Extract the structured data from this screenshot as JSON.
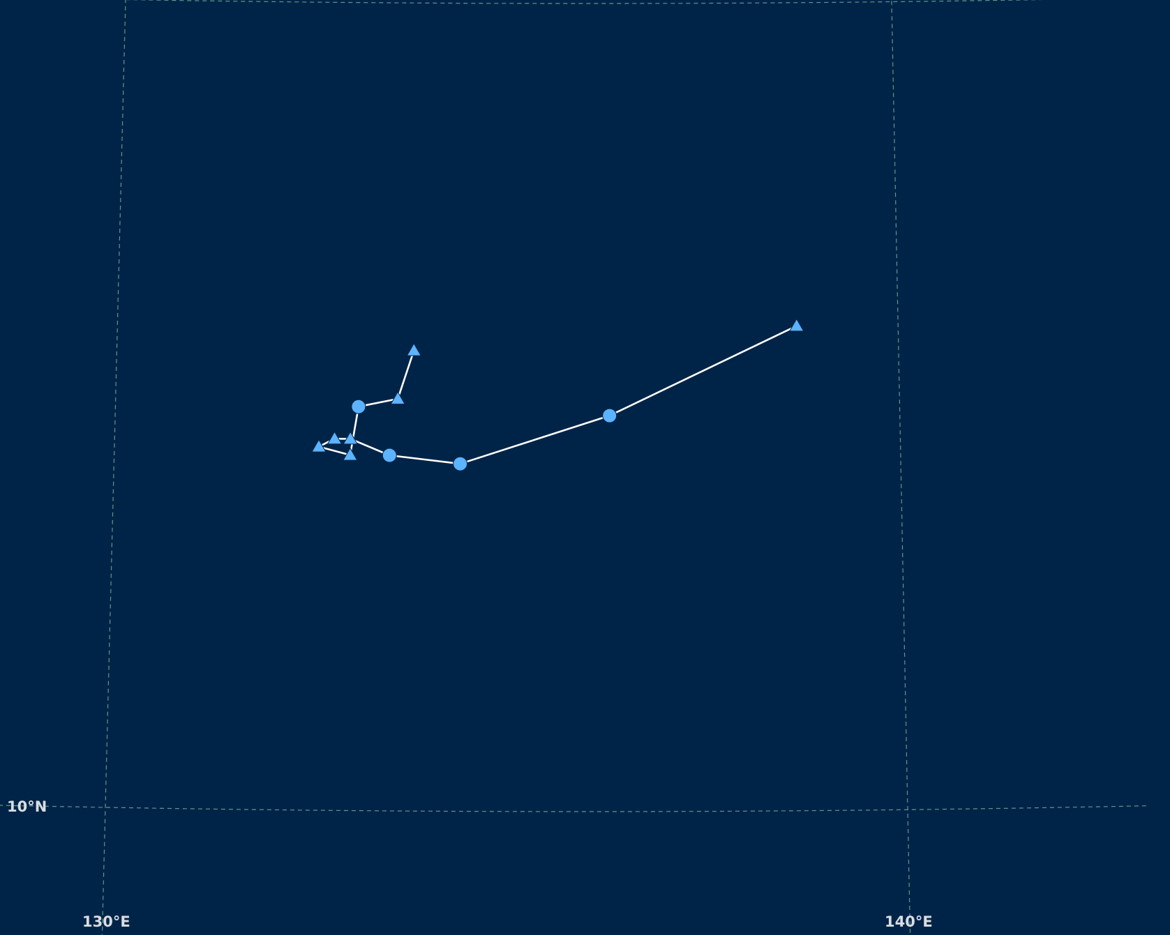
{
  "map": {
    "background_color": "#002447",
    "graticule_color": "#6fae9a",
    "track_color": "#ffffff",
    "marker_color": "#5cb3ff",
    "graticule": {
      "longitudes": [
        {
          "value": 130,
          "label": "130°E"
        },
        {
          "value": 140,
          "label": "140°E"
        }
      ],
      "latitudes": [
        {
          "value": 10,
          "label": "10°N"
        }
      ]
    },
    "track": {
      "points": [
        {
          "lon": 138.7,
          "lat": 16.0,
          "marker": "triangle"
        },
        {
          "lon": 136.3,
          "lat": 14.9,
          "marker": "circle"
        },
        {
          "lon": 134.4,
          "lat": 14.3,
          "marker": "circle"
        },
        {
          "lon": 133.5,
          "lat": 14.4,
          "marker": "circle"
        },
        {
          "lon": 133.0,
          "lat": 14.6,
          "marker": "triangle"
        },
        {
          "lon": 132.8,
          "lat": 14.6,
          "marker": "triangle"
        },
        {
          "lon": 132.6,
          "lat": 14.5,
          "marker": "triangle"
        },
        {
          "lon": 133.0,
          "lat": 14.4,
          "marker": "triangle"
        },
        {
          "lon": 133.1,
          "lat": 15.0,
          "marker": "circle"
        },
        {
          "lon": 133.6,
          "lat": 15.1,
          "marker": "triangle"
        },
        {
          "lon": 133.8,
          "lat": 15.7,
          "marker": "triangle"
        }
      ]
    }
  }
}
